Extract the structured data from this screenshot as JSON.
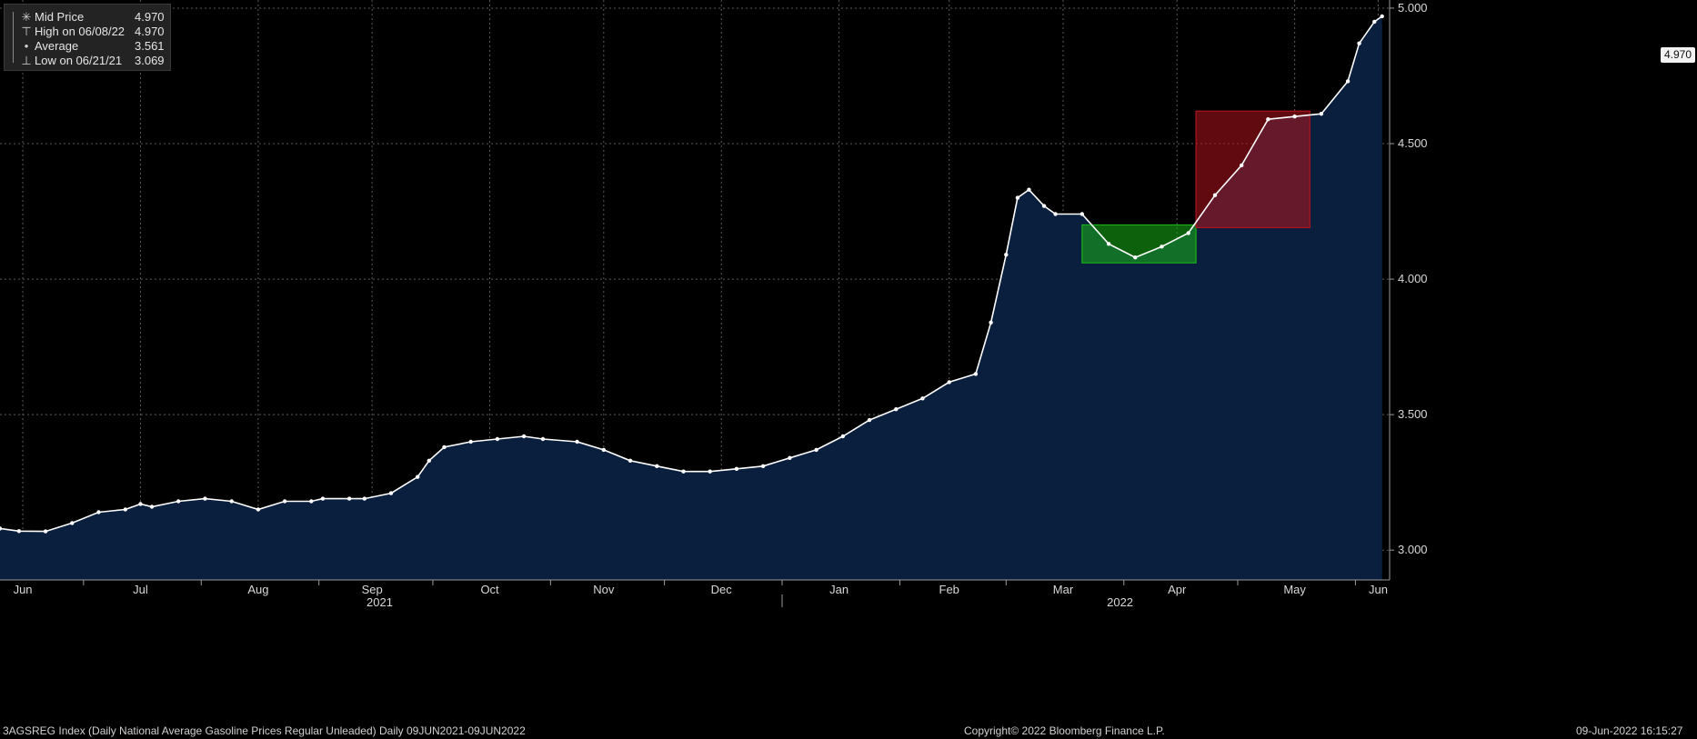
{
  "legend": {
    "items": [
      {
        "symbol": "✳",
        "label": "Mid Price",
        "value": "4.970"
      },
      {
        "symbol": "⊤",
        "label": "High on 06/08/22",
        "value": "4.970"
      },
      {
        "symbol": "•",
        "label": "Average",
        "value": "3.561"
      },
      {
        "symbol": "⊥",
        "label": "Low on 06/21/21",
        "value": "3.069"
      }
    ]
  },
  "last_price_label": "4.970",
  "footer": {
    "left": "3AGSREG Index (Daily National Average Gasoline Prices Regular Unleaded)  Daily 09JUN2021-09JUN2022",
    "center": "Copyright© 2022 Bloomberg Finance L.P.",
    "right": "09-Jun-2022 16:15:27"
  },
  "colors": {
    "background": "#000000",
    "area_fill": "#0a1f3d",
    "line": "#ffffff",
    "grid": "#5a5a5a",
    "green_box": "#17b017",
    "red_box": "#b0141e"
  },
  "chart_data": {
    "type": "area",
    "title": "",
    "xlabel": "",
    "ylabel": "",
    "ylim": [
      2.89,
      5.03
    ],
    "xlim": [
      "2021-06-09",
      "2022-06-10"
    ],
    "yticks": [
      "3.000",
      "3.500",
      "4.000",
      "4.500",
      "5.000"
    ],
    "xticks": [
      "Jun",
      "Jul",
      "Aug",
      "Sep",
      "Oct",
      "Nov",
      "Dec",
      "Jan",
      "Feb",
      "Mar",
      "Apr",
      "May",
      "Jun"
    ],
    "year_labels": [
      "2021",
      "2022"
    ],
    "grid": true,
    "legend_position": "top-left",
    "series": [
      {
        "name": "Mid Price",
        "x": [
          "2021-06-09",
          "2021-06-14",
          "2021-06-21",
          "2021-06-28",
          "2021-07-05",
          "2021-07-12",
          "2021-07-16",
          "2021-07-19",
          "2021-07-26",
          "2021-08-02",
          "2021-08-09",
          "2021-08-16",
          "2021-08-23",
          "2021-08-30",
          "2021-09-02",
          "2021-09-09",
          "2021-09-13",
          "2021-09-20",
          "2021-09-27",
          "2021-09-30",
          "2021-10-04",
          "2021-10-11",
          "2021-10-18",
          "2021-10-25",
          "2021-10-30",
          "2021-11-08",
          "2021-11-15",
          "2021-11-22",
          "2021-11-29",
          "2021-12-06",
          "2021-12-13",
          "2021-12-20",
          "2021-12-27",
          "2022-01-03",
          "2022-01-10",
          "2022-01-17",
          "2022-01-24",
          "2022-01-31",
          "2022-02-07",
          "2022-02-14",
          "2022-02-21",
          "2022-02-25",
          "2022-03-01",
          "2022-03-04",
          "2022-03-07",
          "2022-03-11",
          "2022-03-14",
          "2022-03-21",
          "2022-03-28",
          "2022-04-04",
          "2022-04-11",
          "2022-04-18",
          "2022-04-25",
          "2022-05-02",
          "2022-05-09",
          "2022-05-16",
          "2022-05-23",
          "2022-05-30",
          "2022-06-02",
          "2022-06-06",
          "2022-06-08"
        ],
        "values": [
          3.08,
          3.07,
          3.069,
          3.1,
          3.14,
          3.15,
          3.17,
          3.16,
          3.18,
          3.19,
          3.18,
          3.15,
          3.18,
          3.18,
          3.19,
          3.19,
          3.19,
          3.21,
          3.27,
          3.33,
          3.38,
          3.4,
          3.41,
          3.42,
          3.41,
          3.4,
          3.37,
          3.33,
          3.31,
          3.29,
          3.29,
          3.3,
          3.31,
          3.34,
          3.37,
          3.42,
          3.48,
          3.52,
          3.56,
          3.62,
          3.65,
          3.84,
          4.09,
          4.3,
          4.33,
          4.27,
          4.24,
          4.24,
          4.13,
          4.08,
          4.12,
          4.17,
          4.31,
          4.42,
          4.59,
          4.6,
          4.61,
          4.73,
          4.87,
          4.95,
          4.97
        ]
      }
    ],
    "highlights": [
      {
        "color": "green",
        "x_start": "2022-03-21",
        "x_end": "2022-04-20",
        "y_low": 4.06,
        "y_high": 4.2
      },
      {
        "color": "red",
        "x_start": "2022-04-20",
        "x_end": "2022-05-20",
        "y_low": 4.19,
        "y_high": 4.62
      }
    ]
  }
}
